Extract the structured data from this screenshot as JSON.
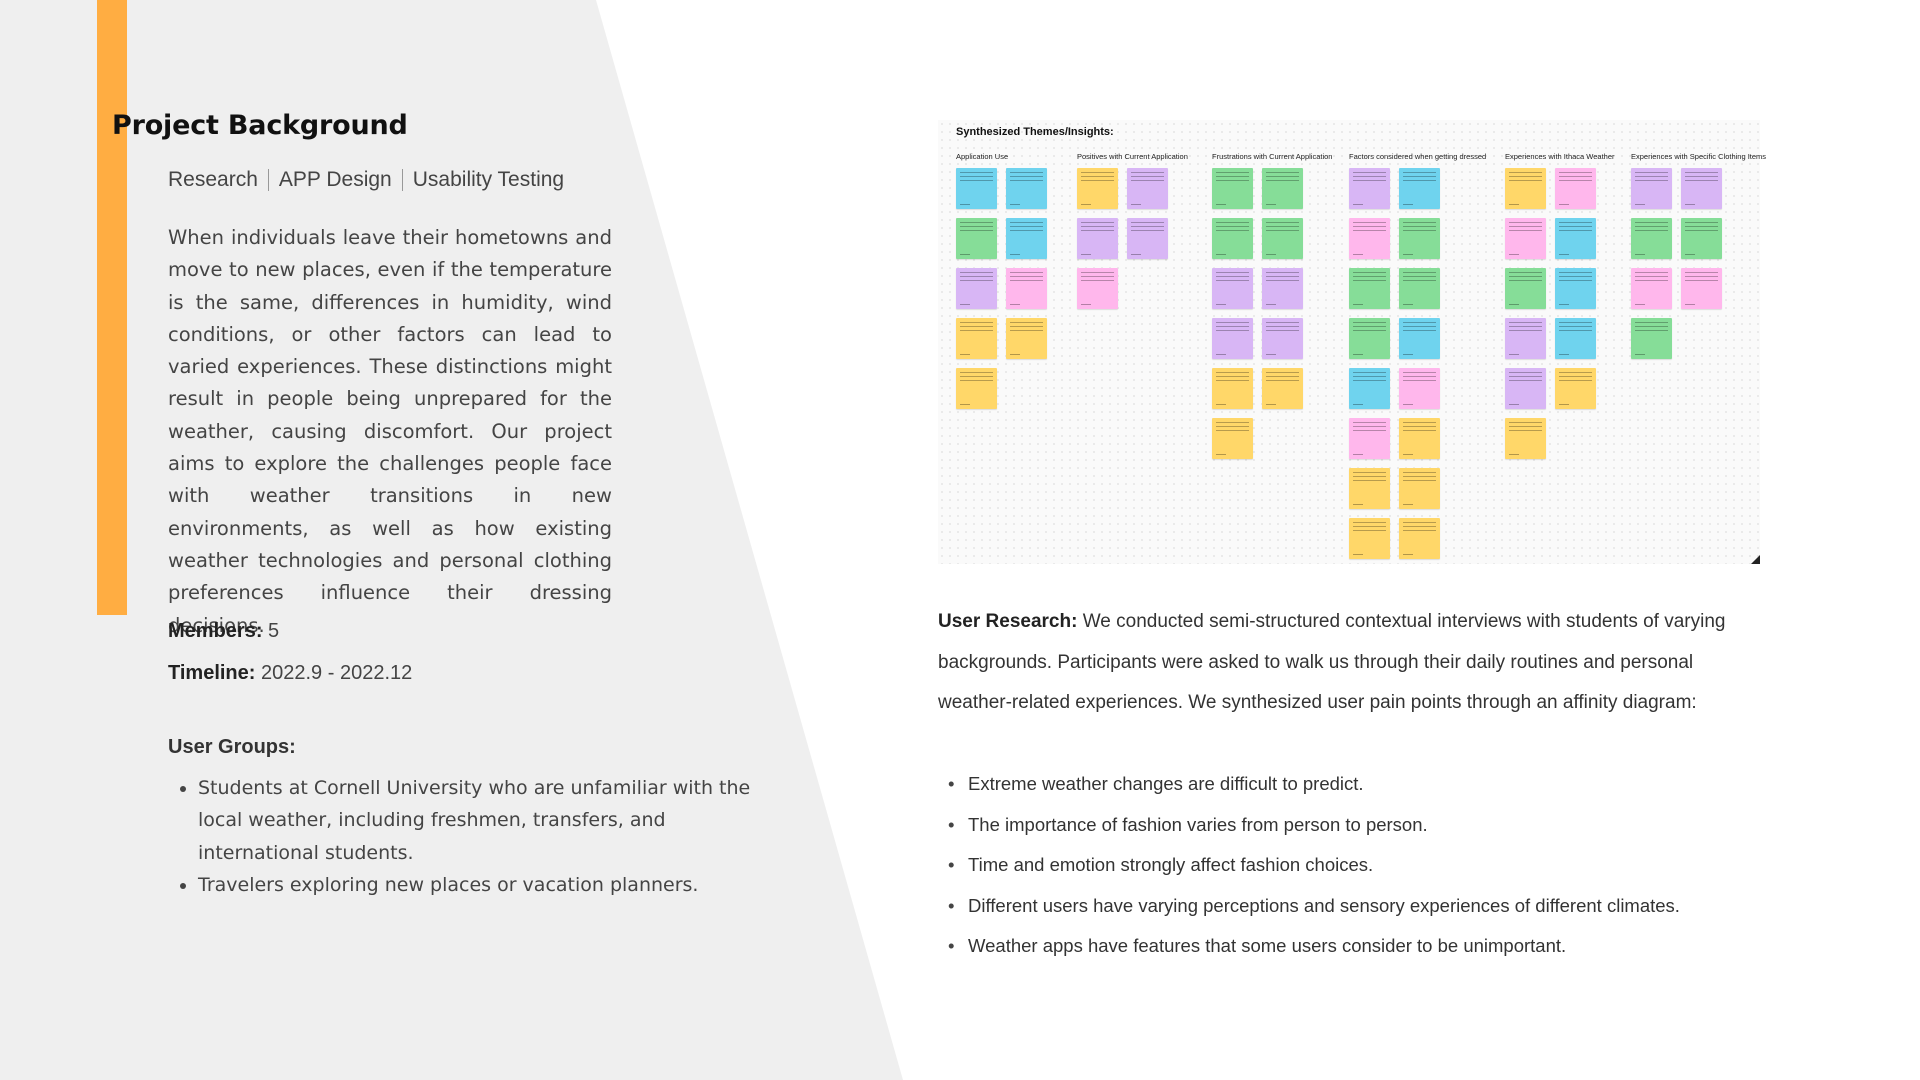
{
  "colors": {
    "accent": "#FFAD42",
    "left_panel": "#EFEFEF",
    "note_blue": "#6FD3EE",
    "note_green": "#86DD98",
    "note_purple": "#D8B6F5",
    "note_yellow": "#FFD769",
    "note_pink": "#FFB7EC"
  },
  "background": {
    "title": "Project Background",
    "tags": [
      "Research",
      "APP Design",
      "Usability Testing"
    ],
    "description": "When individuals leave their hometowns and move to new places, even if the temperature is the same, differences in humidity, wind conditions, or other factors can lead to varied experiences. These distinctions might result in people being unprepared for the weather, causing discomfort. Our project aims to explore the challenges people face with weather transitions in new environments, as well as how existing weather technologies and personal clothing preferences influence their dressing decisions.",
    "members_label": "Members:",
    "members_value": "5",
    "timeline_label": "Timeline:",
    "timeline_value": "2022.9 - 2022.12",
    "user_groups_label": "User Groups:",
    "user_groups": [
      "Students at Cornell University who are unfamiliar with the local weather, including freshmen, transfers, and international students.",
      "Travelers exploring new places or vacation planners."
    ]
  },
  "affinity": {
    "title": "Synthesized Themes/Insights:",
    "columns": [
      {
        "label": "Application Use",
        "notes": [
          [
            "blue",
            "blue"
          ],
          [
            "green",
            "blue"
          ],
          [
            "purple",
            "pink"
          ],
          [
            "yellow",
            "yellow"
          ],
          [
            "yellow"
          ]
        ]
      },
      {
        "label": "Positives with Current Application",
        "notes": [
          [
            "yellow",
            "purple"
          ],
          [
            "purple",
            "purple"
          ],
          [
            "pink"
          ]
        ]
      },
      {
        "label": "Frustrations with Current Application",
        "notes": [
          [
            "green",
            "green"
          ],
          [
            "green",
            "green"
          ],
          [
            "purple",
            "purple"
          ],
          [
            "purple",
            "purple"
          ],
          [
            "yellow",
            "yellow"
          ],
          [
            "yellow"
          ]
        ]
      },
      {
        "label": "Factors considered when getting dressed",
        "notes": [
          [
            "purple",
            "blue"
          ],
          [
            "pink",
            "green"
          ],
          [
            "green",
            "green"
          ],
          [
            "green",
            "blue"
          ],
          [
            "blue",
            "pink"
          ],
          [
            "pink",
            "yellow"
          ],
          [
            "yellow",
            "yellow"
          ],
          [
            "yellow",
            "yellow"
          ]
        ]
      },
      {
        "label": "Experiences with Ithaca Weather",
        "notes": [
          [
            "yellow",
            "pink"
          ],
          [
            "pink",
            "blue"
          ],
          [
            "green",
            "blue"
          ],
          [
            "purple",
            "blue"
          ],
          [
            "purple",
            "yellow"
          ],
          [
            "yellow"
          ]
        ]
      },
      {
        "label": "Experiences with Specific Clothing Items",
        "notes": [
          [
            "purple",
            "purple"
          ],
          [
            "green",
            "green"
          ],
          [
            "pink",
            "pink"
          ],
          [
            "green"
          ]
        ]
      }
    ]
  },
  "research": {
    "label": "User Research:",
    "text": " We conducted semi-structured contextual interviews with students of varying backgrounds. Participants were asked to walk us through their daily routines and personal weather-related experiences. We synthesized user pain points through an affinity diagram:",
    "findings": [
      "Extreme weather changes are difficult to predict.",
      "The importance of fashion varies from person to person.",
      "Time and emotion strongly affect fashion choices.",
      "Different users have varying perceptions and sensory experiences of different climates.",
      "Weather apps have features that some users consider to be unimportant."
    ]
  }
}
